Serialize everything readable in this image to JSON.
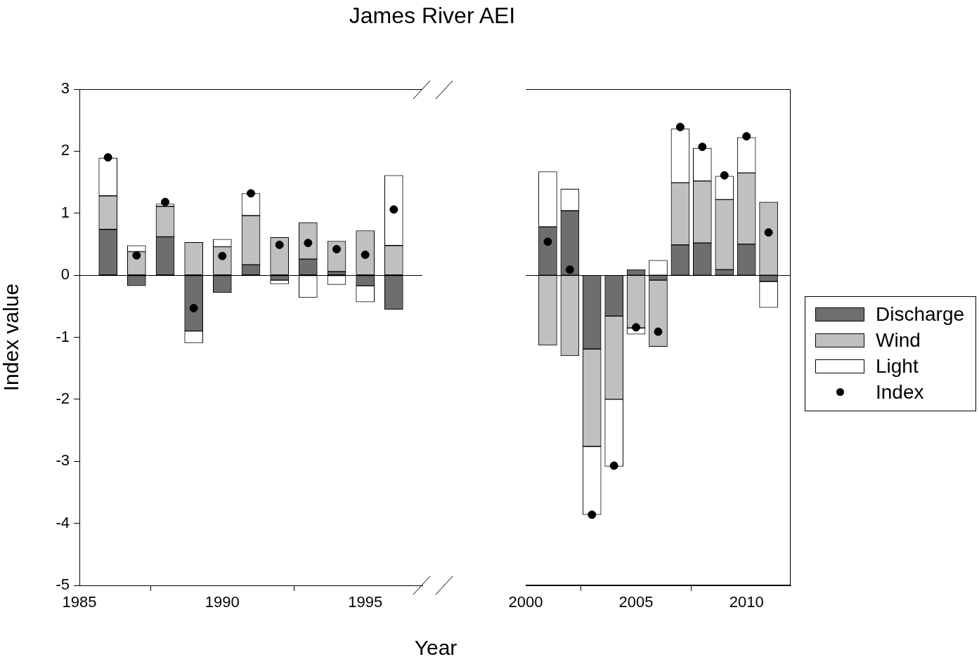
{
  "chart_data": [
    {
      "type": "bar",
      "title": "James River AEI",
      "xlabel": "Year",
      "ylabel": "Index value",
      "stacked": true,
      "xlim": [
        1985,
        1997
      ],
      "xticks": [
        1985,
        1990,
        1995
      ],
      "ylim": [
        -5,
        3
      ],
      "yticks": [
        -5,
        -4,
        -3,
        -2,
        -1,
        0,
        1,
        2,
        3
      ],
      "marker": "circle",
      "x": [
        1986,
        1987,
        1988,
        1989,
        1990,
        1991,
        1992,
        1993,
        1994,
        1995,
        1996
      ],
      "series": [
        {
          "color": "#6e6e6e",
          "values": [
            0.74,
            -0.17,
            0.62,
            -0.9,
            -0.28,
            0.17,
            -0.08,
            0.26,
            0.06,
            -0.17,
            -0.55
          ]
        },
        {
          "color": "#c0c0c0",
          "values": [
            0.54,
            0.38,
            0.49,
            0.53,
            0.46,
            0.79,
            0.61,
            0.59,
            0.49,
            0.72,
            0.48
          ]
        },
        {
          "color": "#ffffff",
          "values": [
            0.61,
            0.1,
            0.04,
            -0.19,
            0.12,
            0.36,
            -0.06,
            -0.36,
            -0.15,
            -0.26,
            1.13
          ]
        },
        {
          "type": "scatter",
          "color": "#000000",
          "values": [
            1.9,
            0.32,
            1.18,
            -0.53,
            0.31,
            1.32,
            0.49,
            0.52,
            0.42,
            0.33,
            1.06
          ]
        }
      ],
      "ref_lines": [
        {
          "axis": "y",
          "value": 0
        }
      ]
    },
    {
      "type": "bar",
      "stacked": true,
      "xlim": [
        2000,
        2012
      ],
      "xticks": [
        2000,
        2005,
        2010
      ],
      "ylim": [
        -5,
        3
      ],
      "yticks": [
        -5,
        -4,
        -3,
        -2,
        -1,
        0,
        1,
        2,
        3
      ],
      "tick_labels": "x",
      "legend": "right",
      "marker": "circle",
      "x": [
        2001,
        2002,
        2003,
        2004,
        2005,
        2006,
        2007,
        2008,
        2009,
        2010,
        2011
      ],
      "series": [
        {
          "name": "Discharge",
          "color": "#6e6e6e",
          "values": [
            0.78,
            1.04,
            -1.19,
            -0.66,
            0.09,
            -0.08,
            0.49,
            0.52,
            0.09,
            0.5,
            -0.1
          ]
        },
        {
          "name": "Wind",
          "color": "#c0c0c0",
          "values": [
            -1.13,
            -1.3,
            -1.57,
            -1.34,
            -0.85,
            -1.07,
            1.0,
            1.0,
            1.13,
            1.15,
            1.18
          ]
        },
        {
          "name": "Light",
          "color": "#ffffff",
          "values": [
            0.89,
            0.35,
            -1.1,
            -1.08,
            -0.1,
            0.24,
            0.87,
            0.53,
            0.38,
            0.57,
            -0.42
          ]
        },
        {
          "name": "Index",
          "type": "scatter",
          "color": "#000000",
          "values": [
            0.54,
            0.09,
            -3.86,
            -3.07,
            -0.84,
            -0.91,
            2.39,
            2.07,
            1.61,
            2.24,
            0.69
          ]
        }
      ],
      "ref_lines": [
        {
          "axis": "y",
          "value": 0
        }
      ]
    }
  ]
}
